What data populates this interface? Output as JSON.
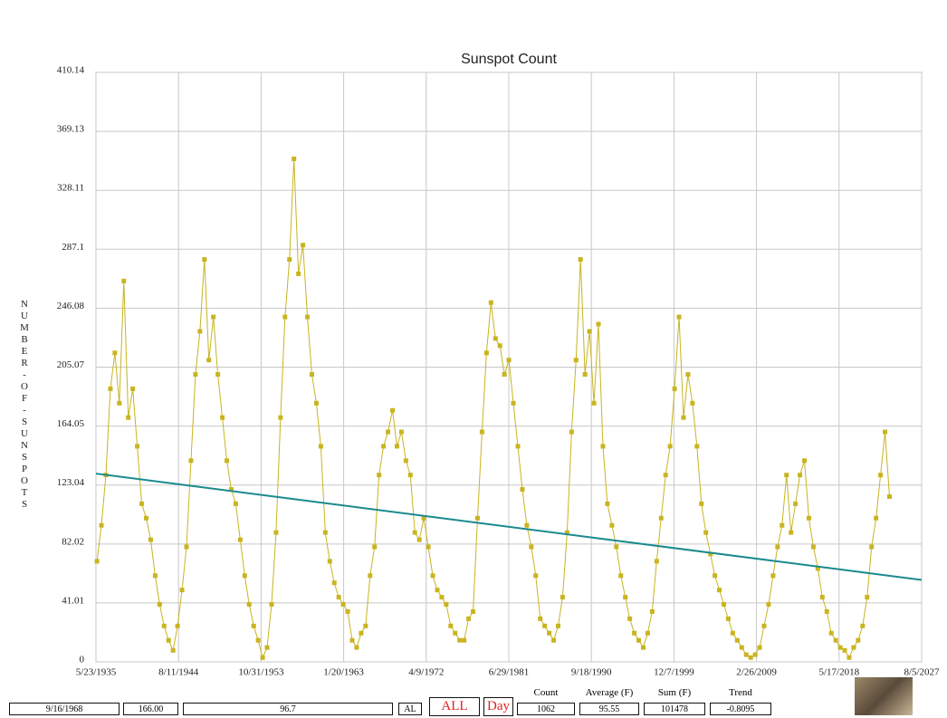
{
  "chart_data": {
    "type": "line",
    "title": "Sunspot Count",
    "y_label": "NUMBER-OF-SUNSPOTS",
    "xlim": [
      1935.39,
      2027.59
    ],
    "xticks": [
      {
        "value": 1935.39,
        "label": "5/23/1935"
      },
      {
        "value": 1944.61,
        "label": "8/11/1944"
      },
      {
        "value": 1953.83,
        "label": "10/31/1953"
      },
      {
        "value": 1963.05,
        "label": "1/20/1963"
      },
      {
        "value": 1972.27,
        "label": "4/9/1972"
      },
      {
        "value": 1981.49,
        "label": "6/29/1981"
      },
      {
        "value": 1990.71,
        "label": "9/18/1990"
      },
      {
        "value": 1999.93,
        "label": "12/7/1999"
      },
      {
        "value": 2009.15,
        "label": "2/26/2009"
      },
      {
        "value": 2018.37,
        "label": "5/17/2018"
      },
      {
        "value": 2027.59,
        "label": "8/5/2027"
      }
    ],
    "ylim": [
      0,
      410.14
    ],
    "yticks": [
      0,
      41.01,
      82.02,
      123.04,
      164.05,
      205.07,
      246.08,
      287.1,
      328.11,
      369.13,
      410.14
    ],
    "grid": true,
    "x": [
      1935.5,
      1936,
      1936.5,
      1937,
      1937.5,
      1938,
      1938.5,
      1939,
      1939.5,
      1940,
      1940.5,
      1941,
      1941.5,
      1942,
      1942.5,
      1943,
      1943.5,
      1944,
      1944.5,
      1945,
      1945.5,
      1946,
      1946.5,
      1947,
      1947.5,
      1948,
      1948.5,
      1949,
      1949.5,
      1950,
      1950.5,
      1951,
      1951.5,
      1952,
      1952.5,
      1953,
      1953.5,
      1954,
      1954.5,
      1955,
      1955.5,
      1956,
      1956.5,
      1957,
      1957.5,
      1958,
      1958.5,
      1959,
      1959.5,
      1960,
      1960.5,
      1961,
      1961.5,
      1962,
      1962.5,
      1963,
      1963.5,
      1964,
      1964.5,
      1965,
      1965.5,
      1966,
      1966.5,
      1967,
      1967.5,
      1968,
      1968.5,
      1969,
      1969.5,
      1970,
      1970.5,
      1971,
      1971.5,
      1972,
      1972.5,
      1973,
      1973.5,
      1974,
      1974.5,
      1975,
      1975.5,
      1976,
      1976.5,
      1977,
      1977.5,
      1978,
      1978.5,
      1979,
      1979.5,
      1980,
      1980.5,
      1981,
      1981.5,
      1982,
      1982.5,
      1983,
      1983.5,
      1984,
      1984.5,
      1985,
      1985.5,
      1986,
      1986.5,
      1987,
      1987.5,
      1988,
      1988.5,
      1989,
      1989.5,
      1990,
      1990.5,
      1991,
      1991.5,
      1992,
      1992.5,
      1993,
      1993.5,
      1994,
      1994.5,
      1995,
      1995.5,
      1996,
      1996.5,
      1997,
      1997.5,
      1998,
      1998.5,
      1999,
      1999.5,
      2000,
      2000.5,
      2001,
      2001.5,
      2002,
      2002.5,
      2003,
      2003.5,
      2004,
      2004.5,
      2005,
      2005.5,
      2006,
      2006.5,
      2007,
      2007.5,
      2008,
      2008.5,
      2009,
      2009.5,
      2010,
      2010.5,
      2011,
      2011.5,
      2012,
      2012.5,
      2013,
      2013.5,
      2014,
      2014.5,
      2015,
      2015.5,
      2016,
      2016.5,
      2017,
      2017.5,
      2018,
      2018.5,
      2019,
      2019.5,
      2020,
      2020.5,
      2021,
      2021.5,
      2022,
      2022.5,
      2023,
      2023.5,
      2024
    ],
    "series": [
      {
        "color": "#c9b420",
        "values": [
          70,
          95,
          130,
          190,
          215,
          180,
          265,
          170,
          190,
          150,
          110,
          100,
          85,
          60,
          40,
          25,
          15,
          8,
          25,
          50,
          80,
          140,
          200,
          230,
          280,
          210,
          240,
          200,
          170,
          140,
          120,
          110,
          85,
          60,
          40,
          25,
          15,
          3,
          10,
          40,
          90,
          170,
          240,
          280,
          350,
          270,
          290,
          240,
          200,
          180,
          150,
          90,
          70,
          55,
          45,
          40,
          35,
          15,
          10,
          20,
          25,
          60,
          80,
          130,
          150,
          160,
          175,
          150,
          160,
          140,
          130,
          90,
          85,
          100,
          80,
          60,
          50,
          45,
          40,
          25,
          20,
          15,
          15,
          30,
          35,
          100,
          160,
          215,
          250,
          225,
          220,
          200,
          210,
          180,
          150,
          120,
          95,
          80,
          60,
          30,
          25,
          20,
          15,
          25,
          45,
          90,
          160,
          210,
          280,
          200,
          230,
          180,
          235,
          150,
          110,
          95,
          80,
          60,
          45,
          30,
          20,
          15,
          10,
          20,
          35,
          70,
          100,
          130,
          150,
          190,
          240,
          170,
          200,
          180,
          150,
          110,
          90,
          75,
          60,
          50,
          40,
          30,
          20,
          15,
          10,
          5,
          3,
          5,
          10,
          25,
          40,
          60,
          80,
          95,
          130,
          90,
          110,
          130,
          140,
          100,
          80,
          65,
          45,
          35,
          20,
          15,
          10,
          8,
          3,
          10,
          15,
          25,
          45,
          80,
          100,
          130,
          160,
          115
        ]
      }
    ],
    "trend_line": {
      "color": "#1a8a8e",
      "x": [
        1935.39,
        2027.59
      ],
      "values": [
        131,
        57
      ]
    }
  },
  "status_bar": {
    "date": "9/16/1968",
    "value": "166.00",
    "smoothed": "96.7",
    "code": "AL",
    "range_button": "ALL",
    "period_button": "Day",
    "count": {
      "label": "Count",
      "value": "1062"
    },
    "average": {
      "label": "Average (F)",
      "value": "95.55"
    },
    "sum": {
      "label": "Sum (F)",
      "value": "101478"
    },
    "trend": {
      "label": "Trend",
      "value": "-0.8095"
    }
  }
}
